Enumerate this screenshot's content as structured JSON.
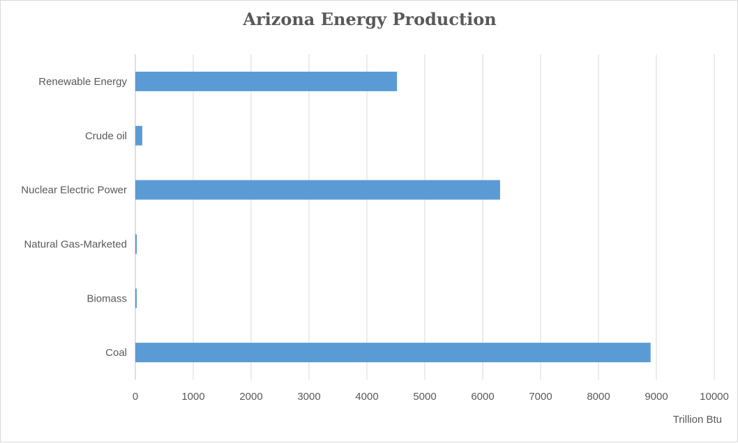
{
  "chart_data": {
    "type": "bar",
    "orientation": "horizontal",
    "title": "Arizona Energy Production",
    "xlabel": "Trillion Btu",
    "ylabel": "",
    "xlim": [
      0,
      10000
    ],
    "x_ticks": [
      "0",
      "1000",
      "2000",
      "3000",
      "4000",
      "5000",
      "6000",
      "7000",
      "8000",
      "9000",
      "10000"
    ],
    "categories": [
      "Coal",
      "Biomass",
      "Natural Gas-Marketed",
      "Nuclear Electric Power",
      "Crude oil",
      "Renewable Energy"
    ],
    "values": [
      8900,
      15,
      25,
      6300,
      120,
      4520
    ],
    "grid": true,
    "legend": "none",
    "colors": {
      "bar": "#5b9bd5",
      "grid": "#d9d9d9",
      "axis": "#bfbfbf",
      "text": "#595959",
      "title": "#595959"
    }
  }
}
